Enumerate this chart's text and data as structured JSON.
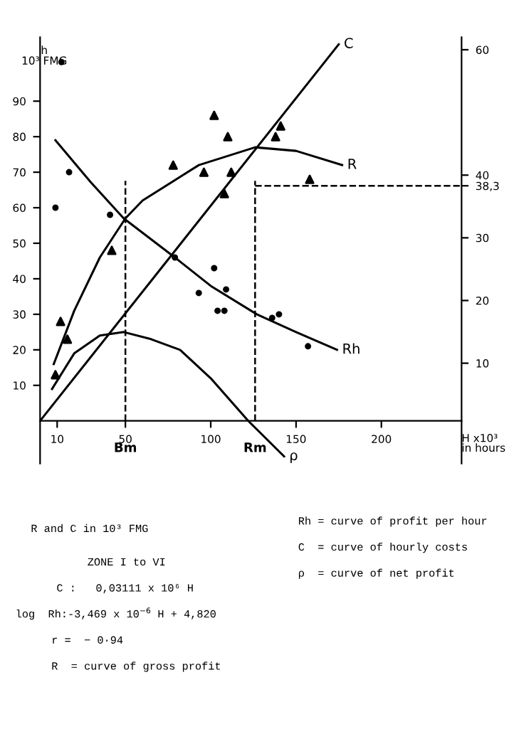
{
  "chart_data": {
    "type": "line",
    "xlabel": "H x10³\nin hours",
    "ylabel": "h\n10³ FMG",
    "xlim": [
      0,
      247
    ],
    "xticks": [
      10,
      50,
      100,
      150,
      200
    ],
    "ylim": [
      -12,
      108
    ],
    "yticks": [
      10,
      20,
      30,
      40,
      50,
      60,
      70,
      80,
      90
    ],
    "y2lim": [
      -6,
      62
    ],
    "y2ticks": [
      10,
      20,
      30,
      {
        "value": 38.3,
        "label": "38,3"
      },
      40,
      60
    ],
    "grid": false,
    "legend": false,
    "series": [
      {
        "name": "C",
        "color": "#000000",
        "x": [
          0,
          175
        ],
        "values": [
          0,
          106
        ]
      },
      {
        "name": "R",
        "color": "#000000",
        "x": [
          8,
          20,
          35,
          50,
          60,
          93,
          126,
          150,
          177
        ],
        "values": [
          16,
          31,
          46,
          57,
          62,
          72,
          77,
          76,
          72
        ]
      },
      {
        "name": "Rh",
        "color": "#000000",
        "x": [
          9,
          30,
          49,
          79,
          100,
          127,
          150,
          174
        ],
        "values": [
          79,
          67,
          57,
          46,
          38,
          30,
          25,
          20
        ]
      },
      {
        "name": "ρ",
        "color": "#000000",
        "x": [
          7,
          20,
          35,
          49,
          65,
          82,
          100,
          122,
          143
        ],
        "values": [
          9,
          19,
          24,
          25,
          23,
          20,
          12,
          0,
          -10
        ]
      },
      {
        "type": "scatter",
        "marker": "circle",
        "color": "#000000",
        "x": [
          12.5,
          17,
          9,
          41,
          79,
          102,
          93,
          109,
          104,
          108,
          136,
          140,
          157
        ],
        "values": [
          101,
          70,
          60,
          58,
          46,
          43,
          36,
          37,
          31,
          31,
          29,
          30,
          21
        ]
      },
      {
        "type": "scatter",
        "marker": "triangle",
        "color": "#000000",
        "x": [
          102,
          110,
          141,
          138,
          78,
          96,
          112,
          108,
          158,
          42,
          12,
          16,
          9
        ],
        "values": [
          86,
          80,
          83,
          80,
          72,
          70,
          70,
          64,
          68,
          48,
          28,
          23,
          13
        ]
      }
    ],
    "ref_lines": [
      {
        "axis": "x",
        "value": 50,
        "label": "Bm",
        "line_style": "dashed"
      },
      {
        "axis": "x",
        "value": 126,
        "label": "Rm",
        "line_style": "dashed"
      },
      {
        "axis": "y2",
        "value": 38.3,
        "line_style": "dashed"
      }
    ],
    "annotations": [
      "R and C in 10³ FMG",
      "ZONE I to VI",
      "C :   0,03111 x 10⁶ H",
      "log  Rh:-3,469 x 10$^{−6}$ H + 4,820",
      "r =  − 0·94",
      "R  = curve of gross profit",
      "Rh = curve of profit per hour",
      "C  = curve of hourly costs",
      "ρ  = curve of net profit"
    ]
  }
}
